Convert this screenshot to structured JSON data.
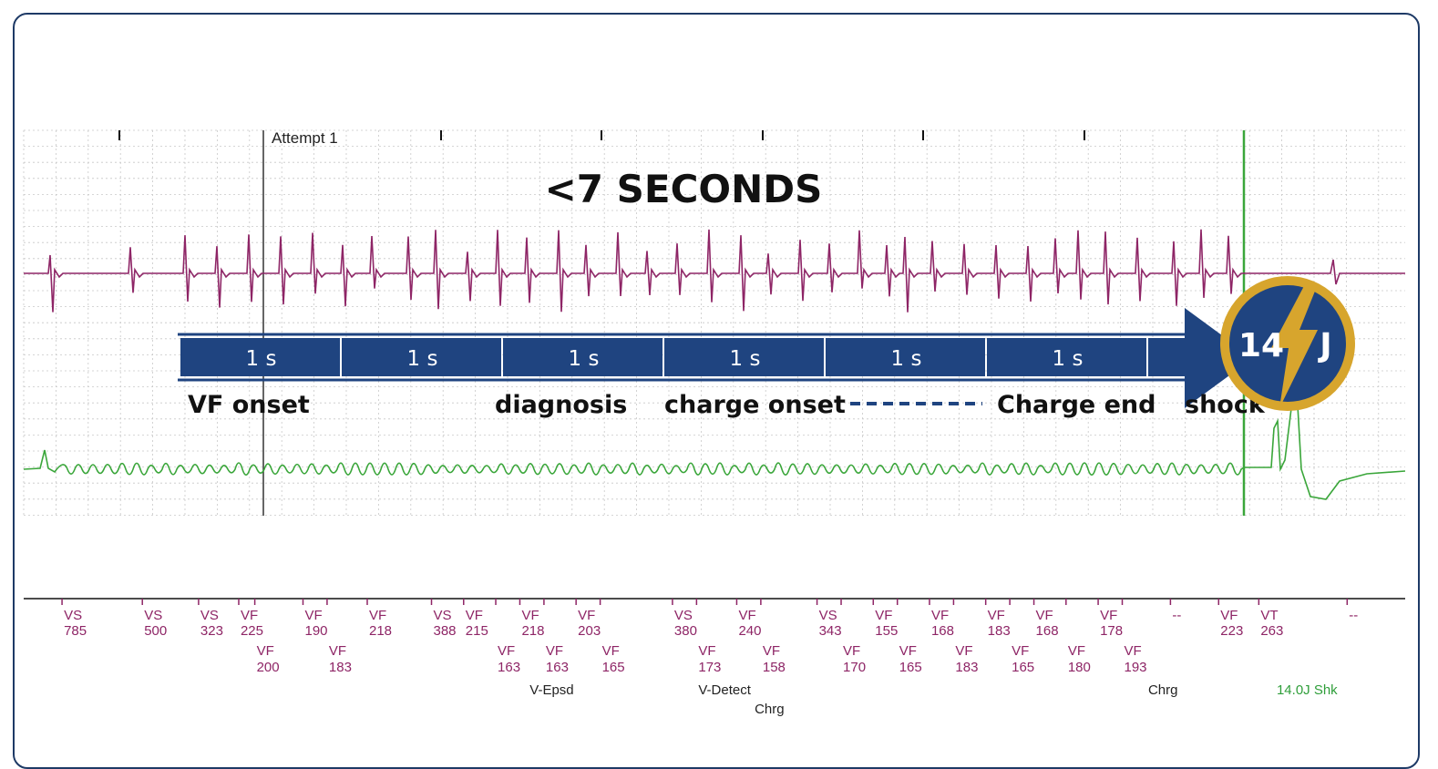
{
  "chart_data": {
    "type": "line",
    "title": "<7 SECONDS",
    "attempt_label": "Attempt 1",
    "segments": [
      "1 s",
      "1 s",
      "1 s",
      "1 s",
      "1 s",
      "1 s",
      "1 s"
    ],
    "phases": [
      "VF onset",
      "diagnosis",
      "charge onset",
      "Charge end",
      "shock"
    ],
    "shock_badge": {
      "number": "14",
      "unit": "J"
    },
    "marker_rows": [
      [
        {
          "t": 0.25,
          "l": "VS",
          "v": "785"
        },
        {
          "t": 0.75,
          "l": "VS",
          "v": "500"
        },
        {
          "t": 1.1,
          "l": "VS",
          "v": "323"
        },
        {
          "t": 1.35,
          "l": "VF",
          "v": "225"
        },
        {
          "t": 1.75,
          "l": "VF",
          "v": "190"
        },
        {
          "t": 2.15,
          "l": "VF",
          "v": "218"
        },
        {
          "t": 2.55,
          "l": "VS",
          "v": "388"
        },
        {
          "t": 2.75,
          "l": "VF",
          "v": "215"
        },
        {
          "t": 3.1,
          "l": "VF",
          "v": "218"
        },
        {
          "t": 3.45,
          "l": "VF",
          "v": "203"
        },
        {
          "t": 4.05,
          "l": "VS",
          "v": "380"
        },
        {
          "t": 4.45,
          "l": "VF",
          "v": "240"
        },
        {
          "t": 4.95,
          "l": "VS",
          "v": "343"
        },
        {
          "t": 5.3,
          "l": "VF",
          "v": "155"
        },
        {
          "t": 5.65,
          "l": "VF",
          "v": "168"
        },
        {
          "t": 6.0,
          "l": "VF",
          "v": "183"
        },
        {
          "t": 6.3,
          "l": "VF",
          "v": "168"
        },
        {
          "t": 6.7,
          "l": "VF",
          "v": "178"
        },
        {
          "t": 7.15,
          "l": "--",
          "v": ""
        },
        {
          "t": 7.45,
          "l": "VF",
          "v": "223"
        },
        {
          "t": 7.7,
          "l": "VT",
          "v": "263"
        },
        {
          "t": 8.25,
          "l": "--",
          "v": ""
        }
      ],
      [
        {
          "t": 1.45,
          "l": "VF",
          "v": "200"
        },
        {
          "t": 1.9,
          "l": "VF",
          "v": "183"
        },
        {
          "t": 2.95,
          "l": "VF",
          "v": "163"
        },
        {
          "t": 3.25,
          "l": "VF",
          "v": "163"
        },
        {
          "t": 3.6,
          "l": "VF",
          "v": "165"
        },
        {
          "t": 4.2,
          "l": "VF",
          "v": "173"
        },
        {
          "t": 4.6,
          "l": "VF",
          "v": "158"
        },
        {
          "t": 5.1,
          "l": "VF",
          "v": "170"
        },
        {
          "t": 5.45,
          "l": "VF",
          "v": "165"
        },
        {
          "t": 5.8,
          "l": "VF",
          "v": "183"
        },
        {
          "t": 6.15,
          "l": "VF",
          "v": "165"
        },
        {
          "t": 6.5,
          "l": "VF",
          "v": "180"
        },
        {
          "t": 6.85,
          "l": "VF",
          "v": "193"
        }
      ]
    ],
    "annotations": [
      {
        "t": 3.15,
        "row": 0,
        "label": "V-Epsd"
      },
      {
        "t": 4.2,
        "row": 0,
        "label": "V-Detect"
      },
      {
        "t": 4.55,
        "row": 1,
        "label": "Chrg"
      },
      {
        "t": 7.0,
        "row": 0,
        "label": "Chrg"
      },
      {
        "t": 7.8,
        "row": 0,
        "label": "14.0J Shk"
      }
    ]
  },
  "colors": {
    "frame": "#1e3a66",
    "grid": "#c8c8c8",
    "egm_top": "#8e2566",
    "egm_bottom": "#3aa63a",
    "band": "#1f4480",
    "marker_text": "#8e2566",
    "annotation_text": "#222222",
    "shock_text": "#2f9e3a",
    "badge_ring": "#d7a52d",
    "badge_fill": "#1f4480"
  }
}
